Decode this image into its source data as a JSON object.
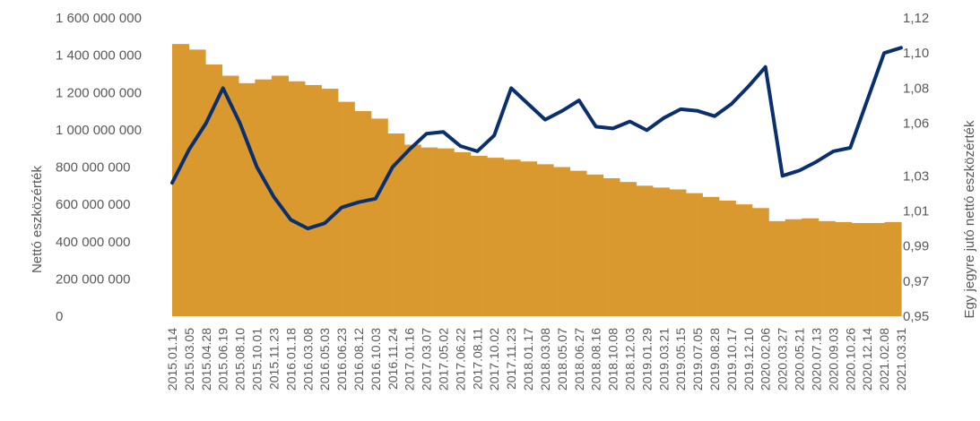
{
  "chart_data": {
    "type": "area+line",
    "title": "",
    "xlabel": "",
    "ylabel_left": "Nettó eszközérték",
    "ylabel_right": "Egy jegyre jutó nettó eszközérték",
    "grid": false,
    "legend": "none",
    "colors": {
      "area": "#D9992E",
      "line": "#0A2F6E",
      "text": "#595959"
    },
    "y_left": {
      "range": [
        0,
        1600000000
      ],
      "ticks": [
        0,
        200000000,
        400000000,
        600000000,
        800000000,
        1000000000,
        1200000000,
        1400000000,
        1600000000
      ],
      "tick_labels": [
        "0",
        "200 000 000",
        "400 000 000",
        "600 000 000",
        "800 000 000",
        "1 000 000 000",
        "1 200 000 000",
        "1 400 000 000",
        "1 600 000 000"
      ]
    },
    "y_right": {
      "range": [
        0.95,
        1.12
      ],
      "ticks": [
        0.95,
        0.97,
        0.99,
        1.01,
        1.03,
        1.06,
        1.08,
        1.1,
        1.12
      ],
      "tick_labels": [
        "0,95",
        "0,97",
        "0,99",
        "1,01",
        "1,03",
        "1,06",
        "1,08",
        "1,10",
        "1,12"
      ]
    },
    "x_tick_labels": [
      "2015.01.14",
      "2015.03.05",
      "2015.04.28",
      "2015.06.19",
      "2015.08.10",
      "2015.10.01",
      "2015.11.23",
      "2016.01.18",
      "2016.03.08",
      "2016.05.03",
      "2016.06.23",
      "2016.08.12",
      "2016.10.03",
      "2016.11.24",
      "2017.01.16",
      "2017.03.07",
      "2017.05.02",
      "2017.06.22",
      "2017.08.11",
      "2017.10.02",
      "2017.11.23",
      "2018.01.17",
      "2018.03.08",
      "2018.05.07",
      "2018.06.27",
      "2018.08.16",
      "2018.10.08",
      "2018.12.03",
      "2019.01.29",
      "2019.03.21",
      "2019.05.15",
      "2019.07.05",
      "2019.08.28",
      "2019.10.17",
      "2019.12.10",
      "2020.02.06",
      "2020.03.27",
      "2020.05.21",
      "2020.07.13",
      "2020.09.03",
      "2020.10.26",
      "2020.12.14",
      "2021.02.08",
      "2021.03.31"
    ],
    "series": [
      {
        "name": "Nettó eszközérték",
        "type": "area",
        "axis": "left",
        "values": [
          1460000000,
          1430000000,
          1350000000,
          1290000000,
          1250000000,
          1270000000,
          1290000000,
          1260000000,
          1240000000,
          1220000000,
          1150000000,
          1100000000,
          1060000000,
          980000000,
          920000000,
          905000000,
          900000000,
          880000000,
          860000000,
          850000000,
          840000000,
          830000000,
          815000000,
          800000000,
          780000000,
          760000000,
          740000000,
          720000000,
          700000000,
          690000000,
          680000000,
          660000000,
          640000000,
          620000000,
          600000000,
          580000000,
          510000000,
          520000000,
          525000000,
          510000000,
          505000000,
          500000000,
          500000000,
          505000000
        ]
      },
      {
        "name": "Egy jegyre jutó nettó eszközérték",
        "type": "line",
        "axis": "right",
        "values": [
          1.026,
          1.045,
          1.06,
          1.08,
          1.06,
          1.035,
          1.018,
          1.005,
          1.0,
          1.003,
          1.012,
          1.015,
          1.017,
          1.035,
          1.045,
          1.054,
          1.055,
          1.047,
          1.044,
          1.053,
          1.08,
          1.071,
          1.062,
          1.067,
          1.073,
          1.058,
          1.057,
          1.061,
          1.056,
          1.063,
          1.068,
          1.067,
          1.064,
          1.071,
          1.081,
          1.092,
          1.03,
          1.033,
          1.038,
          1.044,
          1.046,
          1.073,
          1.1,
          1.103
        ]
      }
    ]
  }
}
